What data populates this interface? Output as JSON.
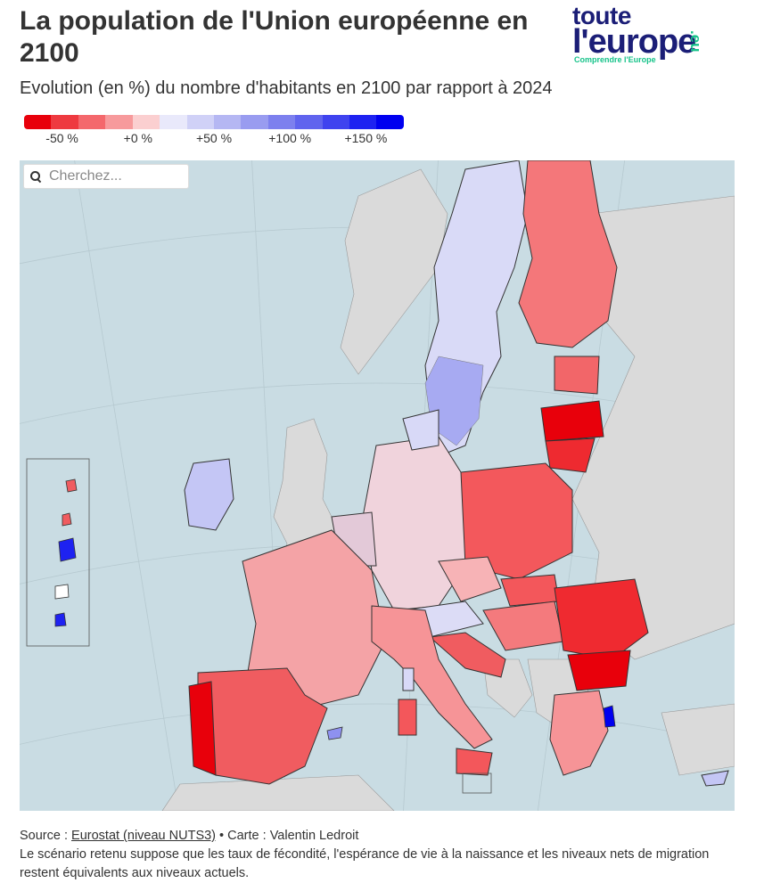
{
  "header": {
    "title": "La population de l'Union européenne en 2100",
    "subtitle": "Evolution (en %) du nombre d'habitants en 2100 par rapport à 2024"
  },
  "logo": {
    "line1": "toute",
    "line2": "l'europe",
    "tagline": "Comprendre l'Europe",
    "suffix": ".eu"
  },
  "legend": {
    "swatches": [
      "#e8000b",
      "#ee3a40",
      "#f4686c",
      "#f79a9c",
      "#fbcfd0",
      "#e9e9fb",
      "#d0d1f7",
      "#b5b7f3",
      "#999cf0",
      "#7d80ee",
      "#6064ee",
      "#3f43ef",
      "#1e22f1",
      "#0000f0"
    ],
    "labels": [
      {
        "text": "-50 %",
        "value": -50
      },
      {
        "text": "+0 %",
        "value": 0
      },
      {
        "text": "+50 %",
        "value": 50
      },
      {
        "text": "+100 %",
        "value": 100
      },
      {
        "text": "+150 %",
        "value": 150
      }
    ]
  },
  "map": {
    "search_placeholder": "Cherchez...",
    "colors": {
      "sea": "#c9dce3",
      "land_nonEU": "#dadada",
      "border": "#333333"
    }
  },
  "footer": {
    "source_prefix": "Source : ",
    "source_link": "Eurostat (niveau NUTS3)",
    "credit": " • Carte : Valentin Ledroit",
    "note": "Le scénario retenu suppose que les taux de fécondité, l'espérance de vie à la naissance et les niveaux nets de migration restent équivalents aux niveaux actuels."
  }
}
